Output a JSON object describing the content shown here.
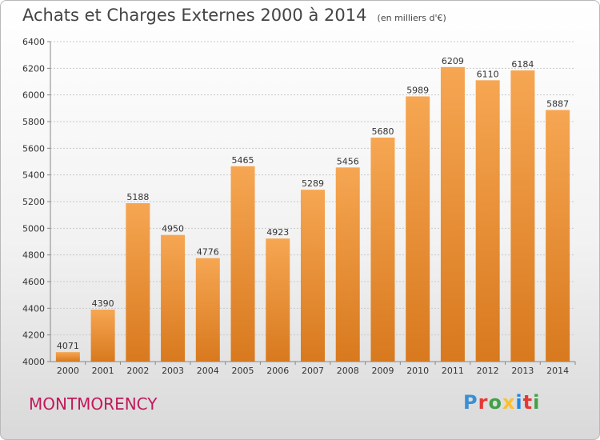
{
  "title": "Achats et Charges Externes 2000 à 2014",
  "unit": "(en milliers d'€)",
  "city": "MONTMORENCY",
  "logo": {
    "text": "Proxiti",
    "letters": [
      {
        "ch": "P",
        "color": "#3a8fd6"
      },
      {
        "ch": "r",
        "color": "#e53935"
      },
      {
        "ch": "o",
        "color": "#43a047"
      },
      {
        "ch": "x",
        "color": "#fbc02d"
      },
      {
        "ch": "i",
        "color": "#1e88e5"
      },
      {
        "ch": "t",
        "color": "#e53935"
      },
      {
        "ch": "i",
        "color": "#43a047"
      }
    ]
  },
  "colors": {
    "bar_top": "#f6a652",
    "bar_bottom": "#d8791e",
    "grid": "#c8c8c8",
    "city": "#c2185b"
  },
  "chart_data": {
    "type": "bar",
    "categories": [
      "2000",
      "2001",
      "2002",
      "2003",
      "2004",
      "2005",
      "2006",
      "2007",
      "2008",
      "2009",
      "2010",
      "2011",
      "2012",
      "2013",
      "2014"
    ],
    "values": [
      4071,
      4390,
      5188,
      4950,
      4776,
      5465,
      4923,
      5289,
      5456,
      5680,
      5989,
      6209,
      6110,
      6184,
      5887
    ],
    "ylim": [
      4000,
      6400
    ],
    "yticks": [
      4000,
      4200,
      4400,
      4600,
      4800,
      5000,
      5200,
      5400,
      5600,
      5800,
      6000,
      6200,
      6400
    ],
    "grid": true,
    "title": "Achats et Charges Externes 2000 à 2014",
    "xlabel": "",
    "ylabel": ""
  }
}
